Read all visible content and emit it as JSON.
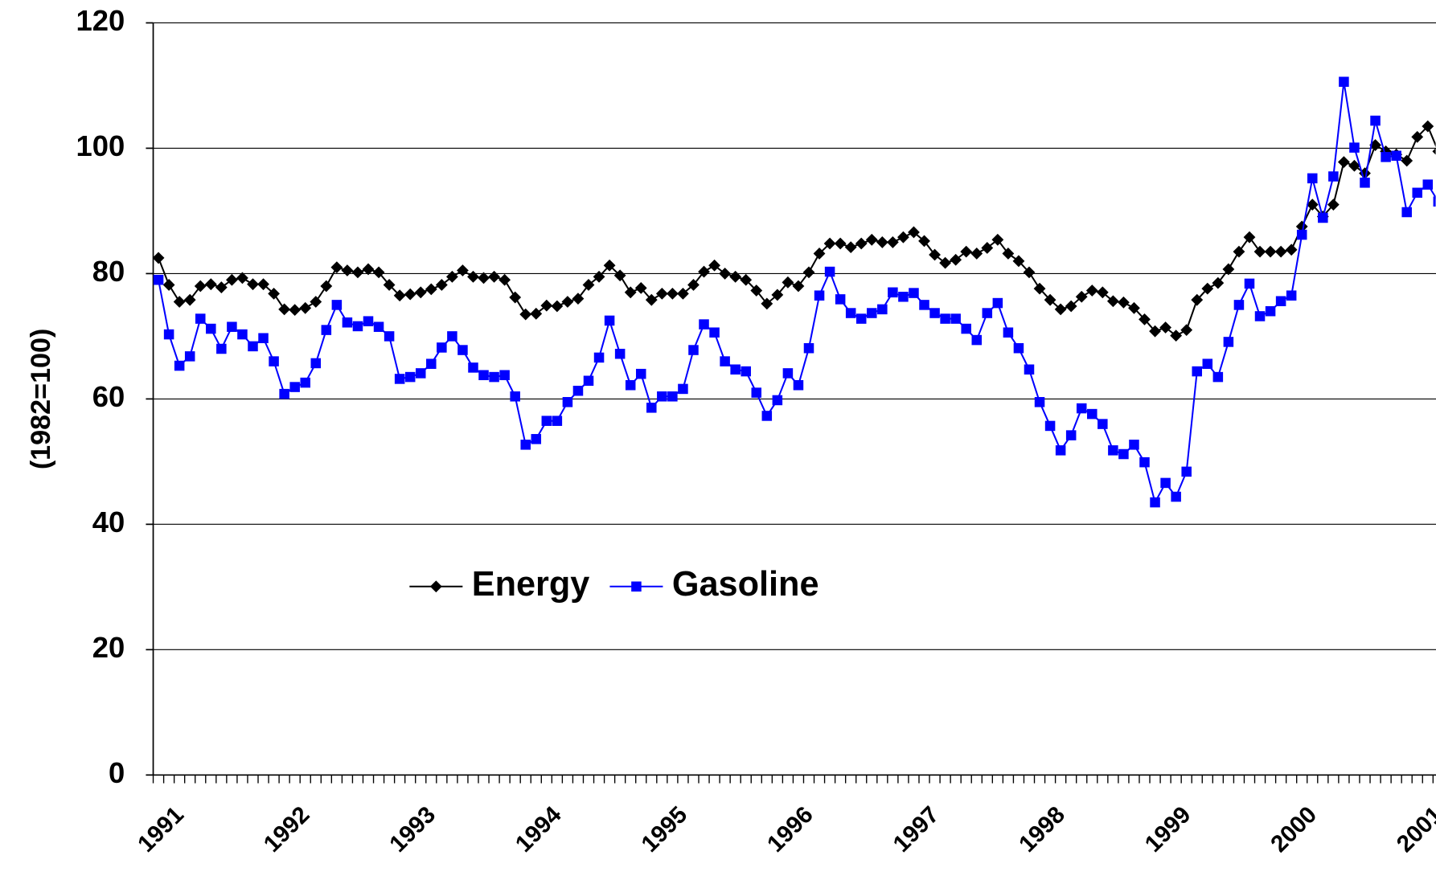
{
  "chart_data": {
    "type": "line",
    "y_label": "(1982=100)",
    "categories": [
      "1991",
      null,
      null,
      null,
      null,
      null,
      null,
      null,
      null,
      null,
      null,
      null,
      "1992",
      null,
      null,
      null,
      null,
      null,
      null,
      null,
      null,
      null,
      null,
      null,
      "1993",
      null,
      null,
      null,
      null,
      null,
      null,
      null,
      null,
      null,
      null,
      null,
      "1994",
      null,
      null,
      null,
      null,
      null,
      null,
      null,
      null,
      null,
      null,
      null,
      "1995",
      null,
      null,
      null,
      null,
      null,
      null,
      null,
      null,
      null,
      null,
      null,
      "1996",
      null,
      null,
      null,
      null,
      null,
      null,
      null,
      null,
      null,
      null,
      null,
      "1997",
      null,
      null,
      null,
      null,
      null,
      null,
      null,
      null,
      null,
      null,
      null,
      "1998",
      null,
      null,
      null,
      null,
      null,
      null,
      null,
      null,
      null,
      null,
      null,
      "1999",
      null,
      null,
      null,
      null,
      null,
      null,
      null,
      null,
      null,
      null,
      null,
      "2000",
      null,
      null,
      null,
      null,
      null,
      null,
      null,
      null,
      null,
      null,
      null,
      "2001",
      null,
      null
    ],
    "series": [
      {
        "name": "Energy",
        "color": "#000000",
        "marker": "diamond",
        "values": [
          82.5,
          78.2,
          75.5,
          75.8,
          78,
          78.3,
          77.8,
          79,
          79.3,
          78.3,
          78.3,
          76.8,
          74.3,
          74.2,
          74.5,
          75.5,
          78,
          81,
          80.5,
          80.2,
          80.7,
          80.2,
          78.2,
          76.5,
          76.7,
          77,
          77.5,
          78.2,
          79.5,
          80.5,
          79.5,
          79.3,
          79.5,
          79,
          76.2,
          73.5,
          73.6,
          74.9,
          74.8,
          75.5,
          76,
          78.2,
          79.5,
          81.3,
          79.7,
          77,
          77.7,
          75.8,
          76.8,
          76.8,
          76.8,
          78.2,
          80.3,
          81.3,
          80,
          79.5,
          79,
          77.3,
          75.2,
          76.6,
          78.6,
          78,
          80.2,
          83.2,
          84.8,
          84.8,
          84.2,
          84.8,
          85.4,
          85,
          85,
          85.8,
          86.6,
          85.2,
          83,
          81.7,
          82.2,
          83.5,
          83.2,
          84.1,
          85.4,
          83.2,
          82,
          80.2,
          77.6,
          75.8,
          74.3,
          74.8,
          76.3,
          77.3,
          77,
          75.6,
          75.4,
          74.5,
          72.7,
          70.8,
          71.4,
          70.1,
          71,
          75.8,
          77.6,
          78.5,
          80.7,
          83.5,
          85.8,
          83.5,
          83.5,
          83.5,
          83.8,
          87.5,
          91,
          89.1,
          91,
          97.8,
          97.2,
          96,
          100.5,
          99.5,
          99,
          98,
          101.8,
          103.5,
          99.5
        ]
      },
      {
        "name": "Gasoline",
        "color": "#0000ff",
        "marker": "square",
        "values": [
          79,
          70.3,
          65.3,
          66.8,
          72.8,
          71.2,
          68,
          71.5,
          70.3,
          68.4,
          69.7,
          66,
          60.8,
          61.9,
          62.6,
          65.7,
          71,
          75,
          72.2,
          71.6,
          72.4,
          71.5,
          70,
          63.2,
          63.5,
          64.1,
          65.6,
          68.2,
          70,
          67.8,
          65,
          63.8,
          63.5,
          63.8,
          60.4,
          52.7,
          53.6,
          56.5,
          56.5,
          59.5,
          61.3,
          62.9,
          66.6,
          72.5,
          67.2,
          62.2,
          64,
          58.6,
          60.4,
          60.4,
          61.6,
          67.8,
          71.9,
          70.6,
          66,
          64.7,
          64.4,
          61,
          57.3,
          59.8,
          64.1,
          62.2,
          68.1,
          76.5,
          80.3,
          75.9,
          73.7,
          72.8,
          73.7,
          74.3,
          77,
          76.3,
          76.9,
          75,
          73.7,
          72.8,
          72.8,
          71.2,
          69.4,
          73.7,
          75.3,
          70.6,
          68.1,
          64.7,
          59.5,
          55.7,
          51.8,
          54.2,
          58.5,
          57.6,
          56,
          51.8,
          51.2,
          52.7,
          49.9,
          43.5,
          46.6,
          44.4,
          48.4,
          64.4,
          65.6,
          63.5,
          69.1,
          75,
          78.4,
          73.2,
          74,
          75.6,
          76.5,
          86.2,
          95.2,
          88.9,
          95.5,
          110.6,
          100.1,
          94.5,
          104.4,
          98.6,
          98.8,
          89.8,
          92.9,
          94.2,
          91.5
        ]
      }
    ],
    "ylim": [
      0,
      120
    ],
    "yticks": [
      0,
      20,
      40,
      60,
      80,
      100,
      120
    ],
    "grid": true
  }
}
